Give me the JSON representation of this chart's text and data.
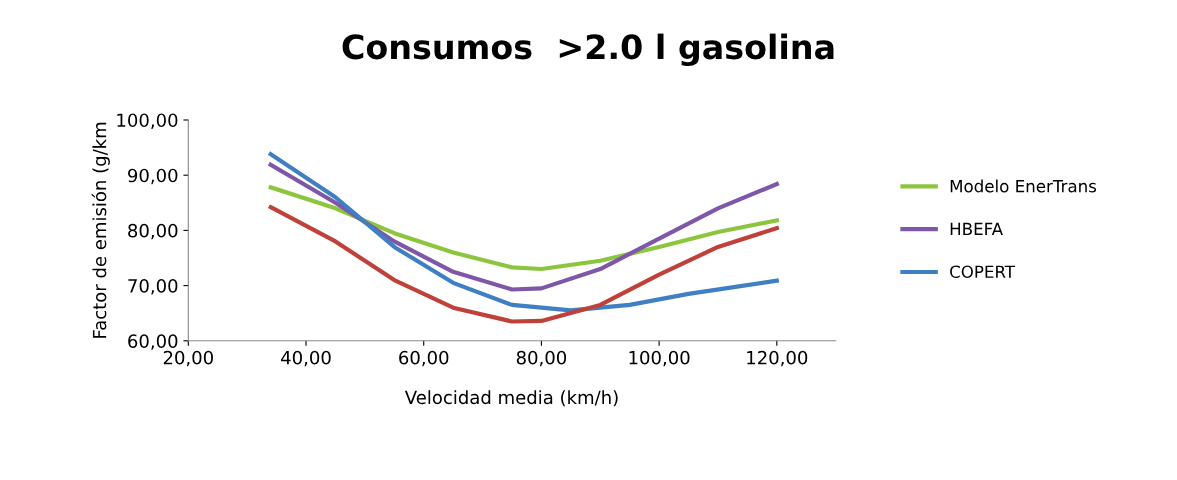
{
  "chart_data": {
    "type": "line",
    "title": "Consumos  >2.0 l gasolina",
    "xlabel": "Velocidad media (km/h)",
    "ylabel": "Factor de emisión (g/km",
    "xlim": [
      20,
      130
    ],
    "ylim": [
      60,
      100
    ],
    "xticks": [
      {
        "value": 20,
        "label": "20,00"
      },
      {
        "value": 40,
        "label": "40,00"
      },
      {
        "value": 60,
        "label": "60,00"
      },
      {
        "value": 80,
        "label": "80,00"
      },
      {
        "value": 100,
        "label": "100,00"
      },
      {
        "value": 120,
        "label": "120,00"
      }
    ],
    "yticks": [
      {
        "value": 60,
        "label": "60,00"
      },
      {
        "value": 70,
        "label": "70,00"
      },
      {
        "value": 80,
        "label": "80,00"
      },
      {
        "value": 90,
        "label": "90,00"
      },
      {
        "value": 100,
        "label": "100,00"
      }
    ],
    "grid": false,
    "legend": "right",
    "marker": "none",
    "line_style": "solid",
    "series": [
      {
        "name": "Modelo EnerTrans",
        "color": "#8cc63f",
        "x": [
          34,
          45,
          55,
          65,
          75,
          80,
          90,
          100,
          110,
          120
        ],
        "values": [
          87.8,
          84,
          79.5,
          76,
          73.3,
          73,
          74.5,
          77,
          79.7,
          81.8
        ]
      },
      {
        "name": "HBEFA",
        "color": "#7e57a8",
        "x": [
          34,
          45,
          55,
          65,
          75,
          80,
          90,
          100,
          110,
          120
        ],
        "values": [
          91.9,
          85,
          78,
          72.5,
          69.3,
          69.5,
          73,
          78.5,
          84,
          88.4
        ]
      },
      {
        "name": "COPERT",
        "color": "#3f7fc4",
        "x": [
          34,
          45,
          55,
          65,
          75,
          85,
          95,
          105,
          120
        ],
        "values": [
          93.8,
          86,
          77,
          70.5,
          66.5,
          65.5,
          66.5,
          68.5,
          70.9
        ]
      },
      {
        "color": "#c0403a",
        "x": [
          34,
          45,
          55,
          65,
          75,
          80,
          90,
          100,
          110,
          120
        ],
        "values": [
          84.2,
          78,
          71,
          66,
          63.5,
          63.6,
          66.5,
          72,
          77,
          80.4
        ]
      }
    ]
  }
}
